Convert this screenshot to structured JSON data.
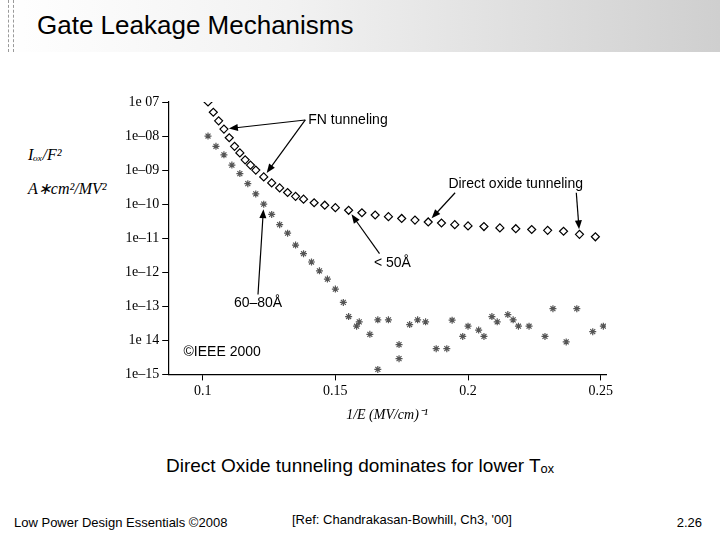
{
  "slide": {
    "title": "Gate Leakage Mechanisms",
    "caption": "Direct Oxide tunneling dominates for lower Tₒₓ",
    "footer_left": "Low Power Design Essentials ©2008",
    "footer_ref": "[Ref: Chandrakasan-Bowhill, Ch3, '00]",
    "page": "2.26"
  },
  "chart_data": {
    "type": "scatter",
    "y_label": [
      "Iₒₓ/F²",
      "A∗cm²/MV²"
    ],
    "x_label": "1/E (MV/cm)⁻¹",
    "log": "y",
    "grid": false,
    "xlim": [
      0.087,
      0.252
    ],
    "xticks": [
      0.1,
      0.15,
      0.2,
      0.25
    ],
    "ylim": [
      1e-15,
      1e-07
    ],
    "yticks": [
      {
        "value": 1e-07,
        "label": "1e 07"
      },
      {
        "value": 1e-08,
        "label": "1e–08"
      },
      {
        "value": 1e-09,
        "label": "1e–09"
      },
      {
        "value": 1e-10,
        "label": "1e–10"
      },
      {
        "value": 1e-11,
        "label": "1e–11"
      },
      {
        "value": 1e-12,
        "label": "1e–12"
      },
      {
        "value": 1e-13,
        "label": "1e–13"
      },
      {
        "value": 1e-14,
        "label": "1e 14"
      },
      {
        "value": 1e-15,
        "label": "1e–15"
      }
    ],
    "annotations": [
      {
        "text": "FN tunneling"
      },
      {
        "text": "Direct oxide tunneling"
      },
      {
        "text": "©IEEE 2000"
      }
    ],
    "series": [
      {
        "name": "< 50Å",
        "color": "#000000",
        "marker": "diamond",
        "line_style": "none",
        "x": [
          0.102,
          0.104,
          0.106,
          0.108,
          0.11,
          0.112,
          0.114,
          0.116,
          0.118,
          0.12,
          0.123,
          0.126,
          0.129,
          0.132,
          0.135,
          0.138,
          0.142,
          0.146,
          0.15,
          0.155,
          0.16,
          0.165,
          0.17,
          0.175,
          0.18,
          0.185,
          0.19,
          0.195,
          0.2,
          0.206,
          0.212,
          0.218,
          0.224,
          0.23,
          0.236,
          0.242,
          0.248
        ],
        "values": [
          1e-07,
          5e-08,
          2.8e-08,
          1.6e-08,
          8.9e-09,
          5e-09,
          3.2e-09,
          2e-09,
          1.4e-09,
          1e-09,
          6.3e-10,
          4.2e-10,
          3e-10,
          2.2e-10,
          1.7e-10,
          1.4e-10,
          1.1e-10,
          9.3e-11,
          7.9e-11,
          6.6e-11,
          5.6e-11,
          4.8e-11,
          4.3e-11,
          3.8e-11,
          3.4e-11,
          3e-11,
          2.8e-11,
          2.5e-11,
          2.3e-11,
          2.2e-11,
          2e-11,
          1.9e-11,
          1.8e-11,
          1.7e-11,
          1.6e-11,
          1.3e-11,
          1.1e-11
        ]
      },
      {
        "name": "60–80Å",
        "color": "#555555",
        "marker": "asterisk",
        "line_style": "none",
        "x": [
          0.102,
          0.105,
          0.108,
          0.111,
          0.114,
          0.117,
          0.12,
          0.123,
          0.126,
          0.129,
          0.132,
          0.135,
          0.138,
          0.141,
          0.144,
          0.147,
          0.15,
          0.153,
          0.155,
          0.159,
          0.163,
          0.166,
          0.17,
          0.174,
          0.178,
          0.181,
          0.184,
          0.188,
          0.192,
          0.194,
          0.198,
          0.2,
          0.204,
          0.206,
          0.209,
          0.211,
          0.215,
          0.217,
          0.219,
          0.223,
          0.229,
          0.232,
          0.237,
          0.241,
          0.247,
          0.251,
          0.166,
          0.174,
          0.158
        ],
        "values": [
          1e-08,
          5e-09,
          2.8e-09,
          1.4e-09,
          7.9e-10,
          4e-10,
          2e-10,
          1e-10,
          5e-11,
          2.5e-11,
          1.4e-11,
          6.3e-12,
          3.5e-12,
          2e-12,
          1.1e-12,
          6.3e-13,
          3.2e-13,
          1.3e-13,
          5e-14,
          3.5e-14,
          1.5e-14,
          4e-14,
          4e-14,
          7.5e-15,
          2.9e-14,
          4e-14,
          3.5e-14,
          5.7e-15,
          5.7e-15,
          3.9e-14,
          1.3e-14,
          2.6e-14,
          2e-14,
          1.3e-14,
          5e-14,
          3.5e-14,
          5.7e-14,
          4e-14,
          2.6e-14,
          2.6e-14,
          1.3e-14,
          8.5e-14,
          9e-15,
          8.5e-14,
          1.8e-14,
          2.6e-14,
          1.4e-15,
          2.9e-15,
          2.6e-14
        ]
      }
    ]
  }
}
